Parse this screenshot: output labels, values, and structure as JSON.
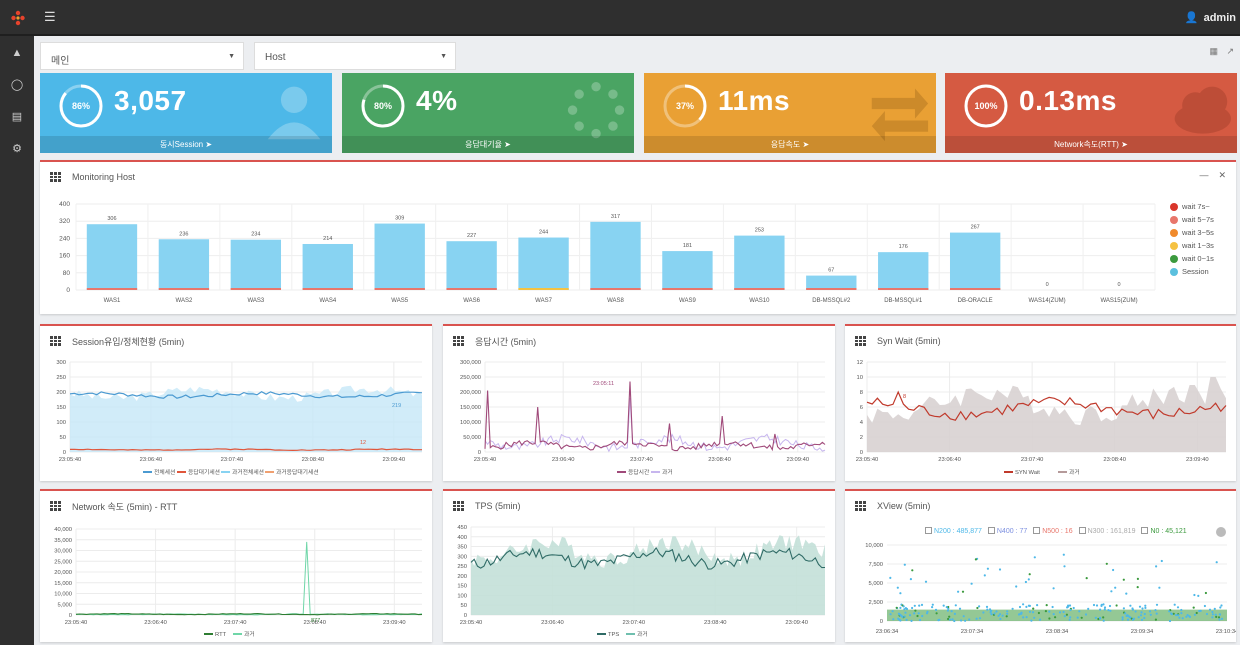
{
  "user": {
    "name": "admin"
  },
  "selectors": {
    "left": "메인",
    "right": "Host"
  },
  "kpis": [
    {
      "percent": "86%",
      "percent_value": 0.86,
      "value": "3,057",
      "label": "동시Session",
      "color": "#4db8e8",
      "icon": "user-icon"
    },
    {
      "percent": "80%",
      "percent_value": 0.8,
      "value": "4%",
      "label": "응답대기율",
      "color": "#4aa463",
      "icon": "spinner-icon"
    },
    {
      "percent": "37%",
      "percent_value": 0.37,
      "value": "11ms",
      "label": "응답속도",
      "color": "#e9a034",
      "icon": "arrows-icon"
    },
    {
      "percent": "100%",
      "percent_value": 1.0,
      "value": "0.13ms",
      "label": "Network속도(RTT)",
      "color": "#d55a42",
      "icon": "cloud-icon"
    }
  ],
  "monitoring": {
    "title": "Monitoring Host",
    "legend": [
      "wait 7s~",
      "wait 5~7s",
      "wait 3~5s",
      "wait 1~3s",
      "wait 0~1s",
      "Session"
    ],
    "legend_colors": [
      "#d9362b",
      "#e8766b",
      "#f08a2c",
      "#f5c242",
      "#3c9a3e",
      "#5bc0de"
    ]
  },
  "panels": {
    "session": {
      "title": "Session유입/정체현황 (5min)",
      "legend": [
        "전체세션",
        "응답대기세션",
        "과거전체세션",
        "과거응답대기세션"
      ],
      "annot1": "219",
      "annot2": "12"
    },
    "response": {
      "title": "응답시간 (5min)",
      "legend": [
        "응답시간",
        "과거"
      ],
      "annot": "23:05:11"
    },
    "synwait": {
      "title": "Syn Wait (5min)",
      "legend": [
        "SYN Wait",
        "과거"
      ],
      "annot": "8"
    },
    "network": {
      "title": "Network 속도 (5min) - RTT",
      "legend": [
        "RTT",
        "과거"
      ],
      "annot": "877"
    },
    "tps": {
      "title": "TPS (5min)",
      "legend": [
        "TPS",
        "과거"
      ]
    },
    "xview": {
      "title": "XView (5min)",
      "filters": [
        "N200 : 485,877",
        "N400 : 77",
        "N500 : 16",
        "N300 : 161,819",
        "N0 : 45,121"
      ],
      "filter_colors": [
        "#4db8e8",
        "#7c8fe0",
        "#e8766b",
        "#aaaaaa",
        "#3c9a3e"
      ]
    }
  },
  "chart_data": [
    {
      "type": "bar",
      "title": "Monitoring Host",
      "categories": [
        "WAS1",
        "WAS2",
        "WAS3",
        "WAS4",
        "WAS5",
        "WAS6",
        "WAS7",
        "WAS8",
        "WAS9",
        "WAS10",
        "DB-MSSQL#2",
        "DB-MSSQL#1",
        "DB-ORACLE",
        "WAS14(ZUM)",
        "WAS15(ZUM)"
      ],
      "series": [
        {
          "name": "Session",
          "values": [
            306,
            236,
            234,
            214,
            309,
            227,
            244,
            317,
            181,
            253,
            67,
            176,
            267,
            0,
            0
          ]
        }
      ],
      "ylim": [
        0,
        400
      ],
      "yticks": [
        "0",
        "80",
        "160",
        "240",
        "320",
        "400"
      ]
    },
    {
      "type": "line",
      "title": "Session유입/정체현황 (5min)",
      "yticks": [
        "0",
        "50",
        "100",
        "150",
        "200",
        "250",
        "300"
      ],
      "xticks": [
        "23:05:40",
        "23:06:40",
        "23:07:40",
        "23:08:40",
        "23:09:40"
      ],
      "ylim": [
        0,
        300
      ]
    },
    {
      "type": "line",
      "title": "응답시간 (5min)",
      "yticks": [
        "0",
        "50,000",
        "100,000",
        "150,000",
        "200,000",
        "250,000",
        "300,000"
      ],
      "xticks": [
        "23:05:40",
        "23:06:40",
        "23:07:40",
        "23:08:40",
        "23:09:40"
      ],
      "ylim": [
        0,
        300000
      ]
    },
    {
      "type": "line",
      "title": "Syn Wait (5min)",
      "yticks": [
        "0",
        "2",
        "4",
        "6",
        "8",
        "10",
        "12"
      ],
      "xticks": [
        "23:05:40",
        "23:06:40",
        "23:07:40",
        "23:08:40",
        "23:09:40"
      ],
      "ylim": [
        0,
        12
      ]
    },
    {
      "type": "line",
      "title": "Network 속도 (5min) - RTT",
      "yticks": [
        "0",
        "5,000",
        "10,000",
        "15,000",
        "20,000",
        "25,000",
        "30,000",
        "35,000",
        "40,000"
      ],
      "xticks": [
        "23:05:40",
        "23:06:40",
        "23:07:40",
        "23:08:40",
        "23:09:40"
      ],
      "ylim": [
        0,
        40000
      ]
    },
    {
      "type": "line",
      "title": "TPS (5min)",
      "yticks": [
        "0",
        "50",
        "100",
        "150",
        "200",
        "250",
        "300",
        "350",
        "400",
        "450"
      ],
      "xticks": [
        "23:05:40",
        "23:06:40",
        "23:07:40",
        "23:08:40",
        "23:09:40"
      ],
      "ylim": [
        0,
        450
      ]
    },
    {
      "type": "scatter",
      "title": "XView (5min)",
      "yticks": [
        "0",
        "2,500",
        "5,000",
        "7,500",
        "10,000"
      ],
      "xticks": [
        "23:06:34",
        "23:07:34",
        "23:08:34",
        "23:09:34",
        "23:10:34"
      ],
      "ylim": [
        0,
        10000
      ]
    }
  ]
}
